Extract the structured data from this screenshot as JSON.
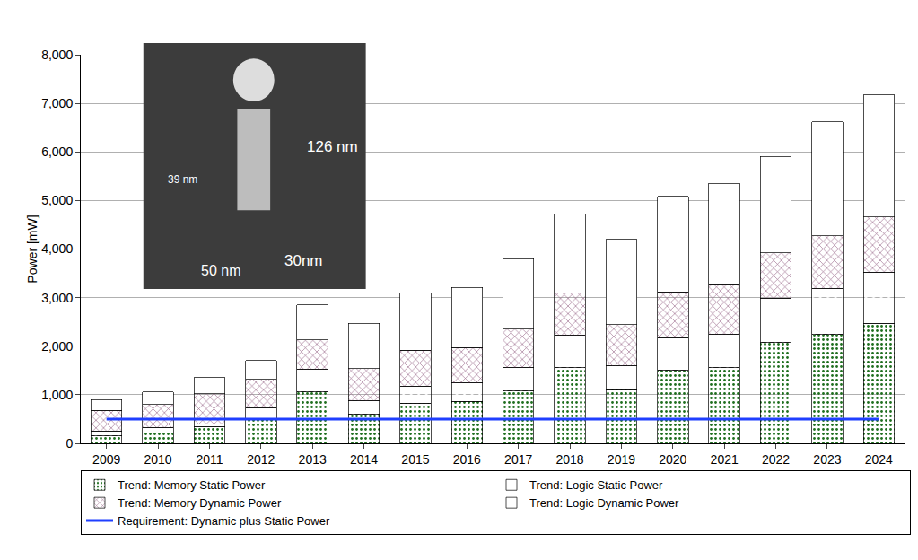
{
  "chart_data": {
    "type": "bar",
    "stacked": true,
    "grid": true,
    "legend": "bottom",
    "yaxis_label": "Power [mW]",
    "categories": [
      "2009",
      "2010",
      "2011",
      "2012",
      "2013",
      "2014",
      "2015",
      "2016",
      "2017",
      "2018",
      "2019",
      "2020",
      "2021",
      "2022",
      "2023",
      "2024"
    ],
    "ylim": [
      0,
      8000
    ],
    "yticks": [
      0,
      {
        "value": 1000,
        "label": "1,000"
      },
      {
        "value": 2000,
        "label": "2,000"
      },
      {
        "value": 3000,
        "label": "3,000"
      },
      {
        "value": 4000,
        "label": "4,000"
      },
      {
        "value": 5000,
        "label": "5,000"
      },
      {
        "value": 6000,
        "label": "6,000"
      },
      {
        "value": 7000,
        "label": "7,000"
      },
      {
        "value": 8000,
        "label": "8,000"
      }
    ],
    "series": [
      {
        "name": "Trend: Memory Static Power",
        "color": "#339933",
        "values": [
          150,
          220,
          350,
          500,
          1060,
          600,
          830,
          860,
          1080,
          1560,
          1100,
          1500,
          1560,
          2070,
          2240,
          2470
        ]
      },
      {
        "name": "Trend: Logic Static Power",
        "color": "#e8413c",
        "values": [
          100,
          110,
          50,
          230,
          460,
          270,
          350,
          380,
          480,
          660,
          490,
          680,
          680,
          920,
          950,
          1050
        ]
      },
      {
        "name": "Trend: Memory Dynamic Power",
        "color": "#e8c6de",
        "values": [
          430,
          470,
          620,
          590,
          610,
          670,
          740,
          730,
          790,
          880,
          850,
          940,
          1030,
          930,
          1080,
          1140
        ]
      },
      {
        "name": "Trend: Logic Dynamic Power",
        "color": "#ffffff",
        "values": [
          220,
          260,
          330,
          380,
          720,
          930,
          1170,
          1240,
          1450,
          1620,
          1760,
          1970,
          2080,
          1990,
          2350,
          2510
        ]
      },
      {
        "name": "Requirement: Dynamic plus Static Power",
        "color": "#1f3fff",
        "type": "line",
        "values": [
          500,
          500,
          500,
          500,
          500,
          500,
          500,
          500,
          500,
          500,
          500,
          500,
          500,
          500,
          500,
          500
        ]
      }
    ],
    "annotations": [
      "126 nm",
      "39 nm",
      "50 nm",
      "30nm"
    ]
  }
}
